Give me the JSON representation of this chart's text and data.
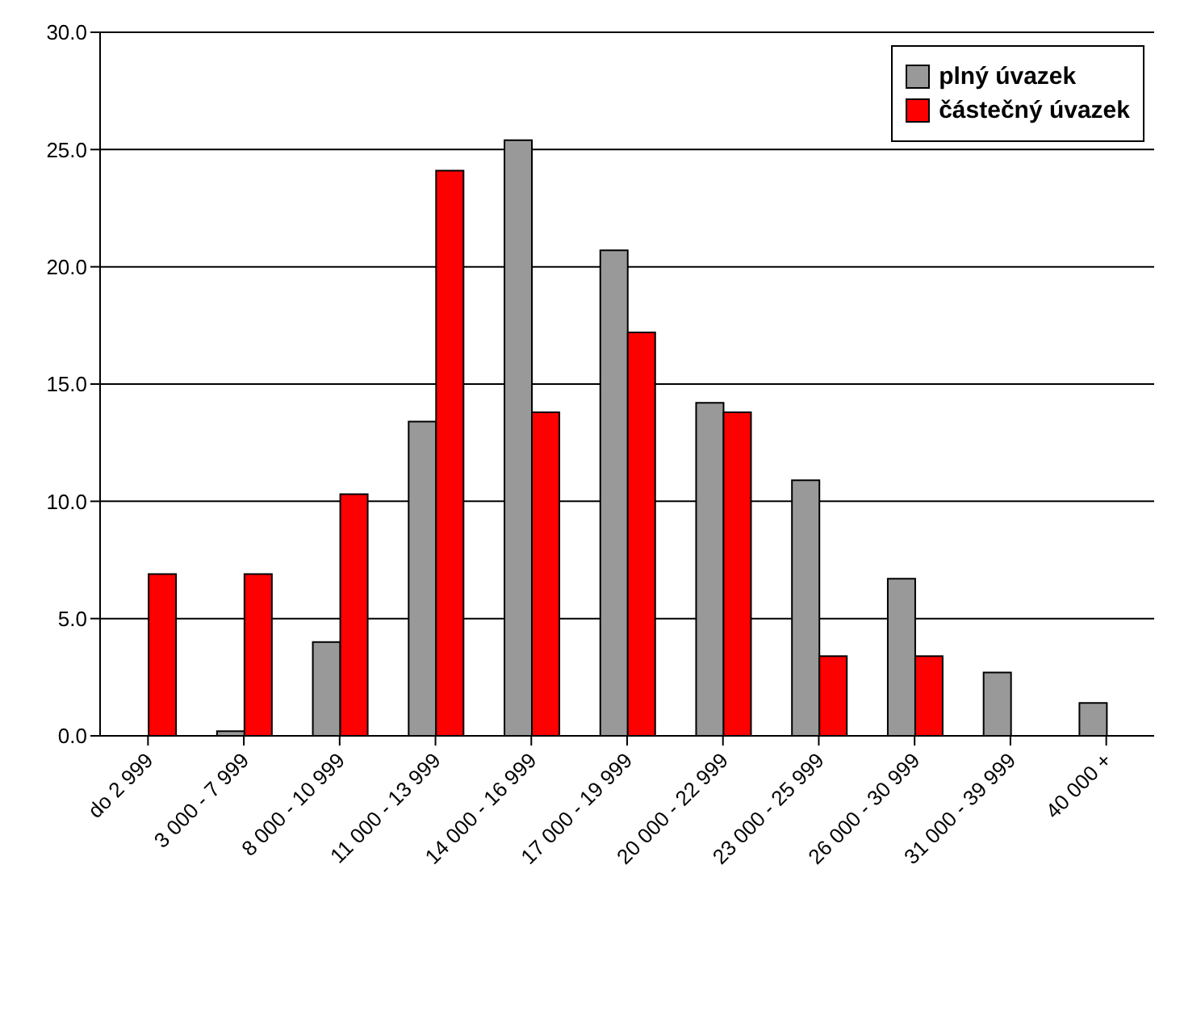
{
  "chart_data": {
    "type": "bar",
    "categories": [
      "do 2 999",
      "3 000 - 7 999",
      "8 000 - 10 999",
      "11 000 - 13 999",
      "14 000 - 16 999",
      "17 000 - 19 999",
      "20 000 - 22 999",
      "23 000 - 25 999",
      "26 000 - 30 999",
      "31 000 - 39 999",
      "40 000 +"
    ],
    "series": [
      {
        "name": "plný úvazek",
        "color": "#999999",
        "values": [
          0,
          0.2,
          4.0,
          13.4,
          25.4,
          20.7,
          14.2,
          10.9,
          6.7,
          2.7,
          1.4
        ]
      },
      {
        "name": "částečný úvazek",
        "color": "#ff0000",
        "values": [
          6.9,
          6.9,
          10.3,
          24.1,
          13.8,
          17.2,
          13.8,
          3.4,
          3.4,
          0,
          0
        ]
      }
    ],
    "ylim": [
      0,
      30
    ],
    "yticks": [
      {
        "value": 0,
        "label": "0.0"
      },
      {
        "value": 5,
        "label": "5.0"
      },
      {
        "value": 10,
        "label": "10.0"
      },
      {
        "value": 15,
        "label": "15.0"
      },
      {
        "value": 20,
        "label": "20.0"
      },
      {
        "value": 25,
        "label": "25.0"
      },
      {
        "value": 30,
        "label": "30.0"
      }
    ],
    "grid": "y",
    "legend": "top right"
  }
}
